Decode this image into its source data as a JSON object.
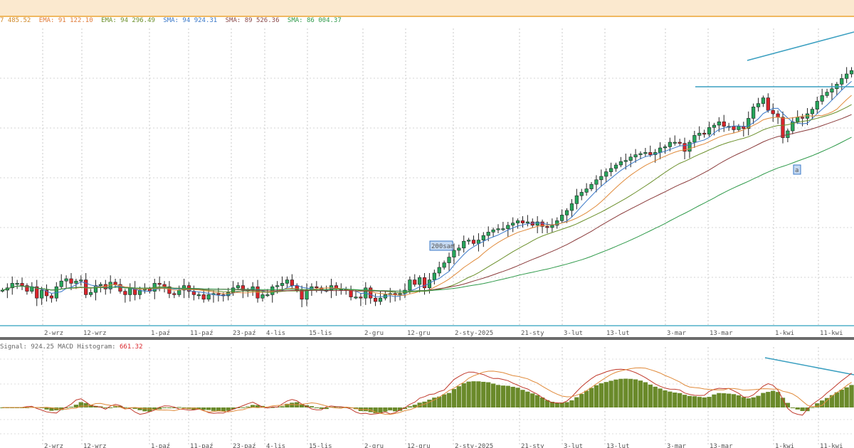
{
  "window": {
    "accent": "#f0b860"
  },
  "legend": {
    "items": [
      {
        "text": "7 485.52",
        "color": "#d08a2a"
      },
      {
        "text": "EMA: 91 122.10",
        "color": "#e07b39"
      },
      {
        "text": "EMA: 94 296.49",
        "color": "#6a8f2a"
      },
      {
        "text": "SMA: 94 924.31",
        "color": "#3a78c8"
      },
      {
        "text": "SMA: 89 526.36",
        "color": "#8a4a4a"
      },
      {
        "text": "SMA: 86 004.37",
        "color": "#2f9a4a"
      }
    ]
  },
  "annotations": {
    "label_200": "200sam",
    "label_a": "a"
  },
  "macd_legend": {
    "signal": "Signal: 924.25",
    "hist_label": "MACD Histogram:",
    "hist_value": "661.32"
  },
  "chart_data": {
    "type": "candlestick",
    "x_tick_labels": [
      "2-wrz",
      "12-wrz",
      "1-paź",
      "11-paź",
      "23-paź",
      "4-lis",
      "15-lis",
      "2-gru",
      "12-gru",
      "2-sty-2025",
      "21-sty",
      "3-lut",
      "13-lut",
      "3-mar",
      "13-mar",
      "1-kwi",
      "11-kwi"
    ],
    "colors": {
      "up": "#26a65b",
      "down": "#d9242b"
    },
    "close_path_note": "",
    "closes": [
      300,
      302,
      306,
      306,
      304,
      299,
      303,
      293,
      300,
      295,
      293,
      303,
      308,
      310,
      306,
      308,
      309,
      296,
      298,
      304,
      305,
      301,
      307,
      305,
      299,
      296,
      302,
      296,
      300,
      301,
      299,
      306,
      305,
      303,
      297,
      296,
      300,
      304,
      299,
      296,
      296,
      292,
      296,
      297,
      296,
      295,
      298,
      302,
      304,
      300,
      300,
      303,
      293,
      296,
      296,
      303,
      304,
      306,
      309,
      304,
      300,
      292,
      300,
      303,
      302,
      300,
      300,
      304,
      301,
      301,
      300,
      294,
      294,
      293,
      302,
      293,
      290,
      293,
      296,
      297,
      296,
      297,
      300,
      309,
      305,
      311,
      302,
      309,
      315,
      320,
      324,
      329,
      335,
      337,
      343,
      344,
      341,
      344,
      348,
      351,
      353,
      354,
      354,
      357,
      359,
      361,
      359,
      360,
      357,
      360,
      356,
      355,
      357,
      361,
      366,
      370,
      376,
      383,
      386,
      389,
      393,
      397,
      400,
      404,
      407,
      410,
      413,
      414,
      417,
      419,
      420,
      421,
      419,
      421,
      425,
      426,
      430,
      430,
      429,
      422,
      430,
      436,
      438,
      437,
      443,
      445,
      448,
      444,
      444,
      441,
      444,
      442,
      451,
      461,
      464,
      469,
      458,
      455,
      452,
      434,
      440,
      448,
      452,
      451,
      455,
      459,
      466,
      471,
      474,
      477,
      481,
      486,
      490,
      493
    ],
    "sma_lines": 5,
    "macd": {
      "type": "bar",
      "label": "MACD Histogram"
    }
  }
}
